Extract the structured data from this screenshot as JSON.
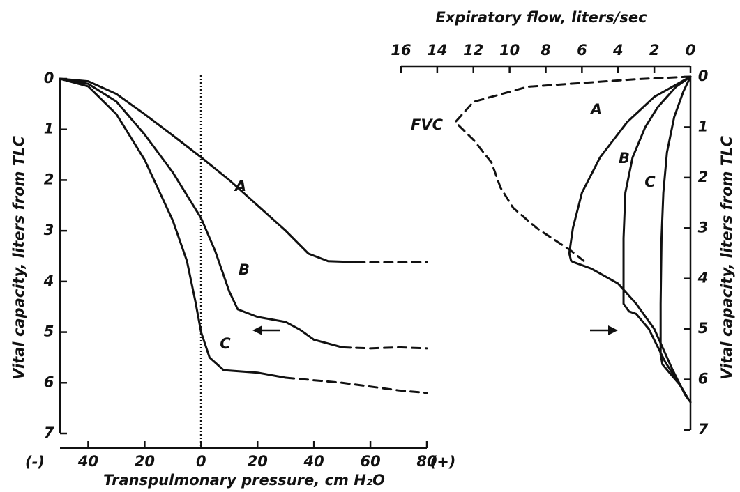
{
  "chart_data": [
    {
      "type": "line",
      "x_label": "Transpulmonary pressure, cm H₂O",
      "y_label": "Vital capacity, liters from TLC",
      "x_end_labels": [
        "(-)",
        "(+)"
      ],
      "xlim": [
        -50,
        80
      ],
      "xticks": [
        {
          "value": -40,
          "label": "40"
        },
        {
          "value": -20,
          "label": "20"
        },
        0,
        20,
        40,
        60,
        80
      ],
      "ylim": [
        0,
        7
      ],
      "y_inverted": true,
      "yticks": [
        0,
        1,
        2,
        3,
        4,
        5,
        6,
        7
      ],
      "vline": 0,
      "series": [
        {
          "name": "A",
          "x": [
            -50,
            -40,
            -30,
            -20,
            -10,
            0,
            10,
            20,
            30,
            38,
            45,
            55
          ],
          "values": [
            0,
            0.05,
            0.3,
            0.7,
            1.12,
            1.55,
            2.0,
            2.5,
            3.0,
            3.45,
            3.6,
            3.62
          ]
        },
        {
          "dash": true,
          "x": [
            55,
            80
          ],
          "values": [
            3.62,
            3.62
          ]
        },
        {
          "name": "B",
          "x": [
            -50,
            -40,
            -30,
            -20,
            -10,
            0,
            5,
            10,
            13,
            20,
            30,
            35,
            40,
            50
          ],
          "values": [
            0,
            0.1,
            0.45,
            1.1,
            1.85,
            2.75,
            3.4,
            4.2,
            4.55,
            4.7,
            4.8,
            4.95,
            5.15,
            5.3
          ]
        },
        {
          "dash": true,
          "x": [
            50,
            60,
            70,
            80
          ],
          "values": [
            5.3,
            5.32,
            5.3,
            5.32
          ]
        },
        {
          "name": "C",
          "x": [
            -50,
            -40,
            -30,
            -20,
            -10,
            -5,
            -2,
            0,
            3,
            8,
            20,
            30
          ],
          "values": [
            0,
            0.15,
            0.7,
            1.6,
            2.8,
            3.6,
            4.4,
            5.0,
            5.5,
            5.75,
            5.8,
            5.9
          ]
        },
        {
          "dash": true,
          "x": [
            30,
            50,
            70,
            80
          ],
          "values": [
            5.9,
            6.0,
            6.15,
            6.2
          ]
        }
      ]
    },
    {
      "type": "line",
      "x_label": "Expiratory flow, liters/sec",
      "y_label": "Vital capacity, liters from TLC",
      "xlim": [
        16,
        0
      ],
      "xticks": [
        16,
        14,
        12,
        10,
        8,
        6,
        4,
        2,
        0
      ],
      "ylim": [
        0,
        7
      ],
      "y_inverted": true,
      "yticks": [
        0,
        1,
        2,
        3,
        4,
        5,
        6,
        7
      ],
      "series": [
        {
          "name": "FVC",
          "dash": true,
          "x": [
            0,
            3,
            9,
            12,
            13,
            12,
            11,
            10.5,
            9.8,
            8.5,
            6.6,
            5.9
          ],
          "values": [
            0,
            0.05,
            0.2,
            0.5,
            0.9,
            1.25,
            1.7,
            2.2,
            2.6,
            3.0,
            3.45,
            3.65
          ]
        },
        {
          "name": "A",
          "x": [
            0,
            0.5,
            2,
            3.5,
            5,
            6,
            6.5,
            6.7,
            6.6,
            6.5,
            5.5,
            4,
            3,
            2,
            1,
            0.3,
            0
          ],
          "values": [
            0,
            0.1,
            0.4,
            0.9,
            1.6,
            2.3,
            3.0,
            3.5,
            3.65,
            3.67,
            3.8,
            4.1,
            4.5,
            5.0,
            5.8,
            6.3,
            6.45
          ]
        },
        {
          "name": "B",
          "x": [
            0,
            0.8,
            1.8,
            2.5,
            3.2,
            3.6,
            3.7,
            3.7,
            3.4,
            3.0,
            2.3,
            1.4,
            0.6,
            0.1
          ],
          "values": [
            0,
            0.2,
            0.6,
            1.0,
            1.6,
            2.3,
            3.2,
            4.5,
            4.65,
            4.7,
            5.0,
            5.65,
            6.1,
            6.4
          ]
        },
        {
          "name": "C",
          "x": [
            0,
            0.4,
            0.9,
            1.3,
            1.5,
            1.6,
            1.65,
            1.65,
            1.55,
            1.2,
            0.6,
            0.1
          ],
          "values": [
            0,
            0.3,
            0.8,
            1.5,
            2.3,
            3.2,
            4.5,
            5.5,
            5.7,
            5.85,
            6.1,
            6.4
          ]
        }
      ]
    }
  ]
}
